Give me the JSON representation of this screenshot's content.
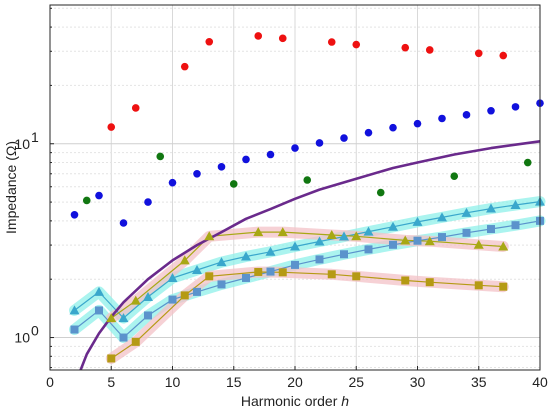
{
  "chart_data": {
    "type": "scatter",
    "title": "",
    "xlabel": "Harmonic order",
    "xlabel_var": "h",
    "ylabel": "Impedance (Ω)",
    "yscale": "log",
    "xlim": [
      0,
      40
    ],
    "ylim": [
      0.68,
      52
    ],
    "grid": true,
    "x_ticks": [
      0,
      5,
      10,
      15,
      20,
      25,
      30,
      35,
      40
    ],
    "y_ticks": [
      {
        "value": 1,
        "base": "10",
        "exp": "0"
      },
      {
        "value": 10,
        "base": "10",
        "exp": "1"
      }
    ],
    "colors": {
      "red": "#ee1111",
      "blue": "#1111dd",
      "green": "#117711",
      "purple": "#6a2a8c",
      "triangle": "#3aa7cc",
      "square": "#5b93cc",
      "olive": "#a8a814",
      "olive_square": "#b59a14",
      "cyan_band": "#8ff0ea",
      "pink_band": "#f3c2c7"
    },
    "series": [
      {
        "marker": "circle",
        "color": "#ee1111",
        "x": [
          5,
          7,
          11,
          13,
          17,
          19,
          23,
          25,
          29,
          31,
          35,
          37
        ],
        "y": [
          12.2,
          15.3,
          25.0,
          33.6,
          36.0,
          35.0,
          33.5,
          32.5,
          31.3,
          30.5,
          29.3,
          28.5
        ]
      },
      {
        "marker": "circle",
        "color": "#1111dd",
        "x": [
          2,
          4,
          6,
          8,
          10,
          12,
          14,
          16,
          18,
          20,
          22,
          24,
          26,
          28,
          30,
          32,
          34,
          36,
          38,
          40
        ],
        "y": [
          4.3,
          5.4,
          3.9,
          5.0,
          6.3,
          7.0,
          7.6,
          8.3,
          8.8,
          9.5,
          10.1,
          10.7,
          11.4,
          12.1,
          12.7,
          13.5,
          14.1,
          14.8,
          15.5,
          16.2
        ]
      },
      {
        "marker": "circle",
        "color": "#117711",
        "x": [
          3,
          9,
          15,
          21,
          27,
          33,
          39
        ],
        "y": [
          5.1,
          8.6,
          6.2,
          6.5,
          5.6,
          6.8,
          8.0
        ]
      },
      {
        "marker": "triangle",
        "color": "#3aa7cc",
        "band": "#8ff0ea",
        "x": [
          2,
          4,
          6,
          8,
          10,
          12,
          14,
          16,
          18,
          20,
          22,
          24,
          26,
          28,
          30,
          32,
          34,
          36,
          38,
          40
        ],
        "y": [
          1.38,
          1.72,
          1.26,
          1.62,
          2.03,
          2.23,
          2.45,
          2.62,
          2.77,
          2.95,
          3.13,
          3.32,
          3.52,
          3.73,
          3.95,
          4.17,
          4.4,
          4.63,
          4.83,
          5.03
        ]
      },
      {
        "marker": "square",
        "color": "#5b93cc",
        "band": "#8ff0ea",
        "x": [
          2,
          4,
          6,
          8,
          10,
          12,
          14,
          16,
          18,
          20,
          22,
          24,
          26,
          28,
          30,
          32,
          34,
          36,
          38,
          40
        ],
        "y": [
          1.1,
          1.38,
          1.0,
          1.3,
          1.57,
          1.72,
          1.88,
          2.03,
          2.19,
          2.37,
          2.53,
          2.69,
          2.85,
          3.01,
          3.16,
          3.3,
          3.47,
          3.63,
          3.8,
          4.0
        ]
      },
      {
        "marker": "triangle",
        "color": "#a8a814",
        "band": "#f3c2c7",
        "x": [
          5,
          7,
          11,
          13,
          17,
          19,
          23,
          25,
          29,
          31,
          35,
          37
        ],
        "y": [
          1.26,
          1.55,
          2.5,
          3.33,
          3.5,
          3.5,
          3.38,
          3.33,
          3.17,
          3.14,
          3.01,
          2.95
        ]
      },
      {
        "marker": "square",
        "color": "#b59a14",
        "band": "#f3c2c7",
        "x": [
          5,
          7,
          11,
          13,
          17,
          19,
          23,
          25,
          29,
          31,
          35,
          37
        ],
        "y": [
          0.78,
          0.95,
          1.65,
          2.07,
          2.18,
          2.17,
          2.12,
          2.07,
          1.97,
          1.93,
          1.86,
          1.83
        ]
      },
      {
        "marker": "none",
        "line": "curve",
        "color": "#6a2a8c",
        "x": [
          2.5,
          3,
          4,
          5,
          6,
          8,
          10,
          12,
          14,
          16,
          18,
          20,
          22,
          25,
          28,
          30,
          33,
          36,
          40
        ],
        "y": [
          0.68,
          0.82,
          1.05,
          1.28,
          1.52,
          2.0,
          2.5,
          3.0,
          3.5,
          4.1,
          4.6,
          5.2,
          5.8,
          6.6,
          7.5,
          8.0,
          8.8,
          9.5,
          10.3
        ]
      }
    ]
  }
}
